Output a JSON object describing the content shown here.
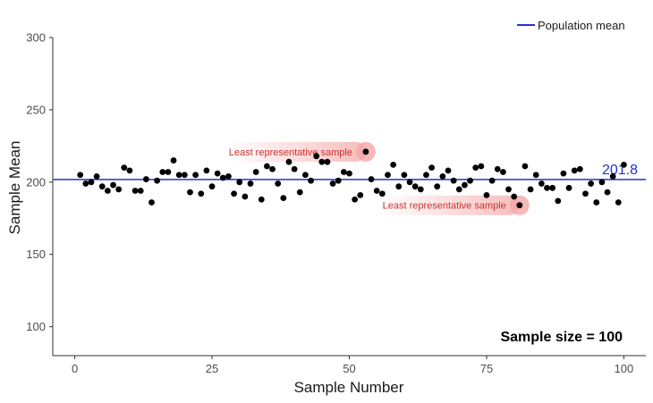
{
  "chart_data": {
    "type": "scatter",
    "title": "",
    "xlabel": "Sample Number",
    "ylabel": "Sample Mean",
    "xlim": [
      -4,
      104
    ],
    "ylim": [
      80,
      300
    ],
    "xticks": [
      0,
      25,
      50,
      75,
      100
    ],
    "yticks": [
      100,
      150,
      200,
      250,
      300
    ],
    "grid": false,
    "legend": {
      "position": "top-right",
      "entries": [
        {
          "label": "Population mean",
          "color": "#2233cc"
        }
      ]
    },
    "series": [
      {
        "marker_color": "#000000",
        "x": [
          1,
          2,
          3,
          4,
          5,
          6,
          7,
          8,
          9,
          10,
          11,
          12,
          13,
          14,
          15,
          16,
          17,
          18,
          19,
          20,
          21,
          22,
          23,
          24,
          25,
          26,
          27,
          28,
          29,
          30,
          31,
          32,
          33,
          34,
          35,
          36,
          37,
          38,
          39,
          40,
          41,
          42,
          43,
          44,
          45,
          46,
          47,
          48,
          49,
          50,
          51,
          52,
          53,
          54,
          55,
          56,
          57,
          58,
          59,
          60,
          61,
          62,
          63,
          64,
          65,
          66,
          67,
          68,
          69,
          70,
          71,
          72,
          73,
          74,
          75,
          76,
          77,
          78,
          79,
          80,
          81,
          82,
          83,
          84,
          85,
          86,
          87,
          88,
          89,
          90,
          91,
          92,
          93,
          94,
          95,
          96,
          97,
          98,
          99,
          100
        ],
        "y": [
          205,
          199,
          200,
          204,
          197,
          194,
          198,
          195,
          210,
          208,
          194,
          194,
          202,
          186,
          201,
          207,
          207,
          215,
          205,
          205,
          193,
          205,
          192,
          208,
          197,
          206,
          203,
          204,
          192,
          200,
          190,
          199,
          207,
          188,
          211,
          209,
          199,
          189,
          214,
          209,
          193,
          205,
          201,
          218,
          214,
          214,
          199,
          201,
          207,
          206,
          188,
          191,
          221,
          202,
          194,
          192,
          205,
          212,
          197,
          205,
          200,
          197,
          195,
          205,
          210,
          197,
          204,
          208,
          201,
          195,
          198,
          201,
          210,
          211,
          191,
          201,
          209,
          207,
          195,
          190,
          184,
          211,
          195,
          205,
          199,
          196,
          196,
          187,
          206,
          196,
          208,
          209,
          192,
          199,
          186,
          200,
          193,
          204,
          186,
          212
        ]
      }
    ],
    "reference_line": {
      "label": "Population mean",
      "value": 201.8,
      "value_label": "201.8",
      "color": "#2233cc"
    },
    "annotations": [
      {
        "text": "Least representative sample",
        "x": 53,
        "y": 221,
        "color": "#cc3333"
      },
      {
        "text": "Least representative sample",
        "x": 81,
        "y": 184,
        "color": "#cc3333"
      }
    ],
    "corner_note": "Sample size = 100"
  }
}
